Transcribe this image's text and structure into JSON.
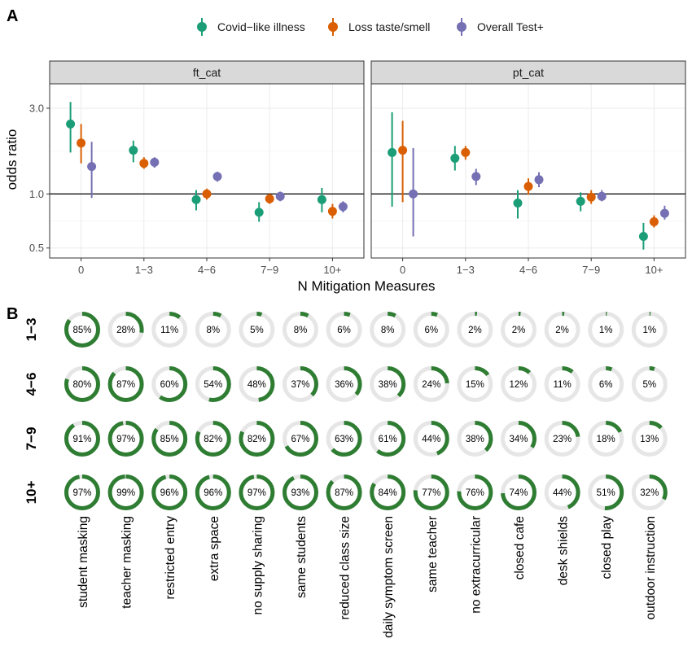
{
  "panel_labels": {
    "a": "A",
    "b": "B"
  },
  "colors": {
    "covid": "#1b9e77",
    "loss": "#d95f02",
    "overall": "#7570b3",
    "ring_fill": "#2e7d32",
    "ring_track": "#e6e6e6",
    "panel_bg": "#ffffff",
    "strip_bg": "#d9d9d9",
    "grid": "#ebebeb"
  },
  "chart_data": [
    {
      "type": "scatter",
      "subtype": "point-range",
      "title": "",
      "xlabel": "N Mitigation Measures",
      "ylabel": "odds ratio",
      "y_scale": "log",
      "ylim": [
        0.44,
        4.1
      ],
      "y_ticks": [
        {
          "value": 0.5,
          "label": "0.5"
        },
        {
          "value": 1.0,
          "label": "1.0"
        },
        {
          "value": 3.0,
          "label": "3.0"
        }
      ],
      "reference_line": 1.0,
      "categories": [
        "0",
        "1−3",
        "4−6",
        "7−9",
        "10+"
      ],
      "legend": {
        "position": "top",
        "items": [
          "Covid−like illness",
          "Loss taste/smell",
          "Overall Test+"
        ]
      },
      "facets": [
        {
          "name": "ft_cat",
          "series": [
            {
              "name": "Covid−like illness",
              "values": [
                2.45,
                1.75,
                0.93,
                0.79,
                0.93
              ],
              "lower": [
                1.7,
                1.5,
                0.81,
                0.7,
                0.79
              ],
              "upper": [
                3.25,
                1.98,
                1.05,
                0.9,
                1.08
              ]
            },
            {
              "name": "Loss taste/smell",
              "values": [
                1.92,
                1.48,
                1.0,
                0.94,
                0.8
              ],
              "lower": [
                1.48,
                1.38,
                0.93,
                0.88,
                0.73
              ],
              "upper": [
                2.45,
                1.6,
                1.07,
                1.0,
                0.88
              ]
            },
            {
              "name": "Overall Test+",
              "values": [
                1.42,
                1.5,
                1.25,
                0.97,
                0.85
              ],
              "lower": [
                0.95,
                1.4,
                1.17,
                0.91,
                0.79
              ],
              "upper": [
                1.95,
                1.6,
                1.33,
                1.03,
                0.91
              ]
            }
          ]
        },
        {
          "name": "pt_cat",
          "series": [
            {
              "name": "Covid−like illness",
              "values": [
                1.7,
                1.58,
                0.89,
                0.91,
                0.58
              ],
              "lower": [
                0.85,
                1.35,
                0.73,
                0.8,
                0.49
              ],
              "upper": [
                2.85,
                1.85,
                1.05,
                1.02,
                0.69
              ]
            },
            {
              "name": "Loss taste/smell",
              "values": [
                1.75,
                1.7,
                1.1,
                0.96,
                0.7
              ],
              "lower": [
                0.9,
                1.55,
                0.99,
                0.88,
                0.65
              ],
              "upper": [
                2.55,
                1.85,
                1.22,
                1.05,
                0.76
              ]
            },
            {
              "name": "Overall Test+",
              "values": [
                1.0,
                1.25,
                1.2,
                0.97,
                0.78
              ],
              "lower": [
                0.58,
                1.12,
                1.09,
                0.91,
                0.72
              ],
              "upper": [
                1.8,
                1.38,
                1.32,
                1.05,
                0.86
              ]
            }
          ]
        }
      ]
    },
    {
      "type": "heatmap",
      "subtype": "donut-grid",
      "title": "",
      "rows": [
        "1−3",
        "4−6",
        "7−9",
        "10+"
      ],
      "columns": [
        "student masking",
        "teacher masking",
        "restricted entry",
        "extra space",
        "no supply sharing",
        "same students",
        "reduced class size",
        "daily symptom screen",
        "same teacher",
        "no extracurricular",
        "closed cafe",
        "desk shields",
        "closed play",
        "outdoor instruction"
      ],
      "values": [
        [
          85,
          28,
          11,
          8,
          5,
          8,
          6,
          8,
          6,
          2,
          2,
          2,
          1,
          1
        ],
        [
          80,
          87,
          60,
          54,
          48,
          37,
          36,
          38,
          24,
          15,
          12,
          11,
          6,
          5
        ],
        [
          91,
          97,
          85,
          82,
          82,
          67,
          63,
          61,
          44,
          38,
          34,
          23,
          18,
          13
        ],
        [
          97,
          99,
          96,
          96,
          97,
          93,
          87,
          84,
          77,
          76,
          74,
          44,
          51,
          32
        ]
      ],
      "unit": "%"
    }
  ]
}
